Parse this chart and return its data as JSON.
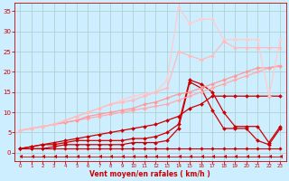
{
  "bg_color": "#cceeff",
  "grid_color": "#aacccc",
  "xlabel": "Vent moyen/en rafales ( km/h )",
  "xlabel_color": "#cc0000",
  "tick_color": "#cc0000",
  "xlim": [
    -0.5,
    23.5
  ],
  "ylim": [
    -2,
    37
  ],
  "yticks": [
    0,
    5,
    10,
    15,
    20,
    25,
    30,
    35
  ],
  "xticks": [
    0,
    1,
    2,
    3,
    4,
    5,
    6,
    7,
    8,
    9,
    10,
    11,
    12,
    13,
    14,
    15,
    16,
    17,
    18,
    19,
    20,
    21,
    22,
    23
  ],
  "series": [
    {
      "x": [
        0,
        1,
        2,
        3,
        4,
        5,
        6,
        7,
        8,
        9,
        10,
        11,
        12,
        13,
        14,
        15,
        16,
        17,
        18,
        19,
        20,
        21,
        22,
        23
      ],
      "y": [
        1,
        1,
        1,
        1,
        1,
        1,
        1,
        1,
        1,
        1,
        1,
        1,
        1,
        1,
        1,
        1,
        1,
        1,
        1,
        1,
        1,
        1,
        1,
        1
      ],
      "color": "#cc0000",
      "lw": 0.8,
      "marker": "D",
      "ms": 1.8
    },
    {
      "x": [
        0,
        1,
        2,
        3,
        4,
        5,
        6,
        7,
        8,
        9,
        10,
        11,
        12,
        13,
        14,
        15,
        16,
        17,
        18,
        19,
        20,
        21,
        22,
        23
      ],
      "y": [
        1,
        1,
        1,
        1.5,
        2,
        2,
        2,
        2,
        2,
        2,
        2.5,
        2.5,
        2.5,
        3,
        6,
        17.5,
        16,
        10.5,
        6,
        6,
        6,
        3,
        2,
        6
      ],
      "color": "#cc0000",
      "lw": 0.9,
      "marker": "D",
      "ms": 2.0
    },
    {
      "x": [
        0,
        1,
        2,
        3,
        4,
        5,
        6,
        7,
        8,
        9,
        10,
        11,
        12,
        13,
        14,
        15,
        16,
        17,
        18,
        19,
        20,
        21,
        22,
        23
      ],
      "y": [
        1,
        1.5,
        2,
        2,
        2.5,
        3,
        3,
        3,
        3,
        3,
        3.5,
        3.5,
        4,
        5,
        7,
        18,
        17,
        15,
        10,
        6.5,
        6.5,
        6.5,
        2.5,
        6.5
      ],
      "color": "#cc0000",
      "lw": 0.9,
      "marker": "D",
      "ms": 2.0
    },
    {
      "x": [
        0,
        1,
        2,
        3,
        4,
        5,
        6,
        7,
        8,
        9,
        10,
        11,
        12,
        13,
        14,
        15,
        16,
        17,
        18,
        19,
        20,
        21,
        22,
        23
      ],
      "y": [
        1,
        1.5,
        2,
        2.5,
        3,
        3.5,
        4,
        4.5,
        5,
        5.5,
        6,
        6.5,
        7,
        8,
        9,
        11,
        12,
        14,
        14,
        14,
        14,
        14,
        14,
        14
      ],
      "color": "#cc0000",
      "lw": 0.9,
      "marker": "D",
      "ms": 2.0
    },
    {
      "x": [
        0,
        1,
        2,
        3,
        4,
        5,
        6,
        7,
        8,
        9,
        10,
        11,
        12,
        13,
        14,
        15,
        16,
        17,
        18,
        19,
        20,
        21,
        22,
        23
      ],
      "y": [
        5.5,
        6,
        6.5,
        7,
        7.5,
        8,
        8.5,
        9,
        9.5,
        10,
        10.5,
        11,
        11.5,
        12,
        13,
        14,
        15,
        16,
        17,
        18,
        19,
        20,
        21,
        21.5
      ],
      "color": "#ffaaaa",
      "lw": 0.9,
      "marker": "D",
      "ms": 2.0
    },
    {
      "x": [
        0,
        1,
        2,
        3,
        4,
        5,
        6,
        7,
        8,
        9,
        10,
        11,
        12,
        13,
        14,
        15,
        16,
        17,
        18,
        19,
        20,
        21,
        22,
        23
      ],
      "y": [
        5.5,
        6,
        6.5,
        7,
        7.5,
        8,
        9,
        9.5,
        10,
        10.5,
        11,
        12,
        12.5,
        13.5,
        14.5,
        15,
        16,
        17,
        18,
        19,
        20,
        21,
        21,
        21.5
      ],
      "color": "#ff9999",
      "lw": 0.9,
      "marker": "D",
      "ms": 2.0
    },
    {
      "x": [
        0,
        1,
        2,
        3,
        4,
        5,
        6,
        7,
        8,
        9,
        10,
        11,
        12,
        13,
        14,
        15,
        16,
        17,
        18,
        19,
        20,
        21,
        22,
        23
      ],
      "y": [
        5.5,
        6,
        6.5,
        7,
        8,
        9,
        10,
        11,
        12,
        13,
        14,
        14.5,
        15,
        18,
        36,
        32,
        33,
        33,
        28,
        28,
        28,
        28,
        14,
        28
      ],
      "color": "#ffcccc",
      "lw": 0.9,
      "marker": "D",
      "ms": 2.0
    },
    {
      "x": [
        0,
        1,
        2,
        3,
        4,
        5,
        6,
        7,
        8,
        9,
        10,
        11,
        12,
        13,
        14,
        15,
        16,
        17,
        18,
        19,
        20,
        21,
        22,
        23
      ],
      "y": [
        5.5,
        6,
        6.5,
        7,
        8,
        9,
        10,
        11,
        12,
        12.5,
        13,
        14,
        15,
        16,
        25,
        24,
        23,
        24,
        27.5,
        26,
        26,
        26,
        26,
        26
      ],
      "color": "#ffbbbb",
      "lw": 0.9,
      "marker": "D",
      "ms": 2.0
    },
    {
      "x": [
        0,
        1,
        2,
        3,
        4,
        5,
        6,
        7,
        8,
        9,
        10,
        11,
        12,
        13,
        14,
        15,
        16,
        17,
        18,
        19,
        20,
        21,
        22,
        23
      ],
      "y": [
        -1,
        -1,
        -1,
        -1,
        -1,
        -1,
        -1,
        -1,
        -1,
        -1,
        -1,
        -1,
        -1,
        -1,
        -1,
        -1,
        -1,
        -1,
        -1,
        -1,
        -1,
        -1,
        -1,
        -1
      ],
      "color": "#cc0000",
      "lw": 0.6,
      "marker": 4,
      "ms": 3.0
    }
  ]
}
